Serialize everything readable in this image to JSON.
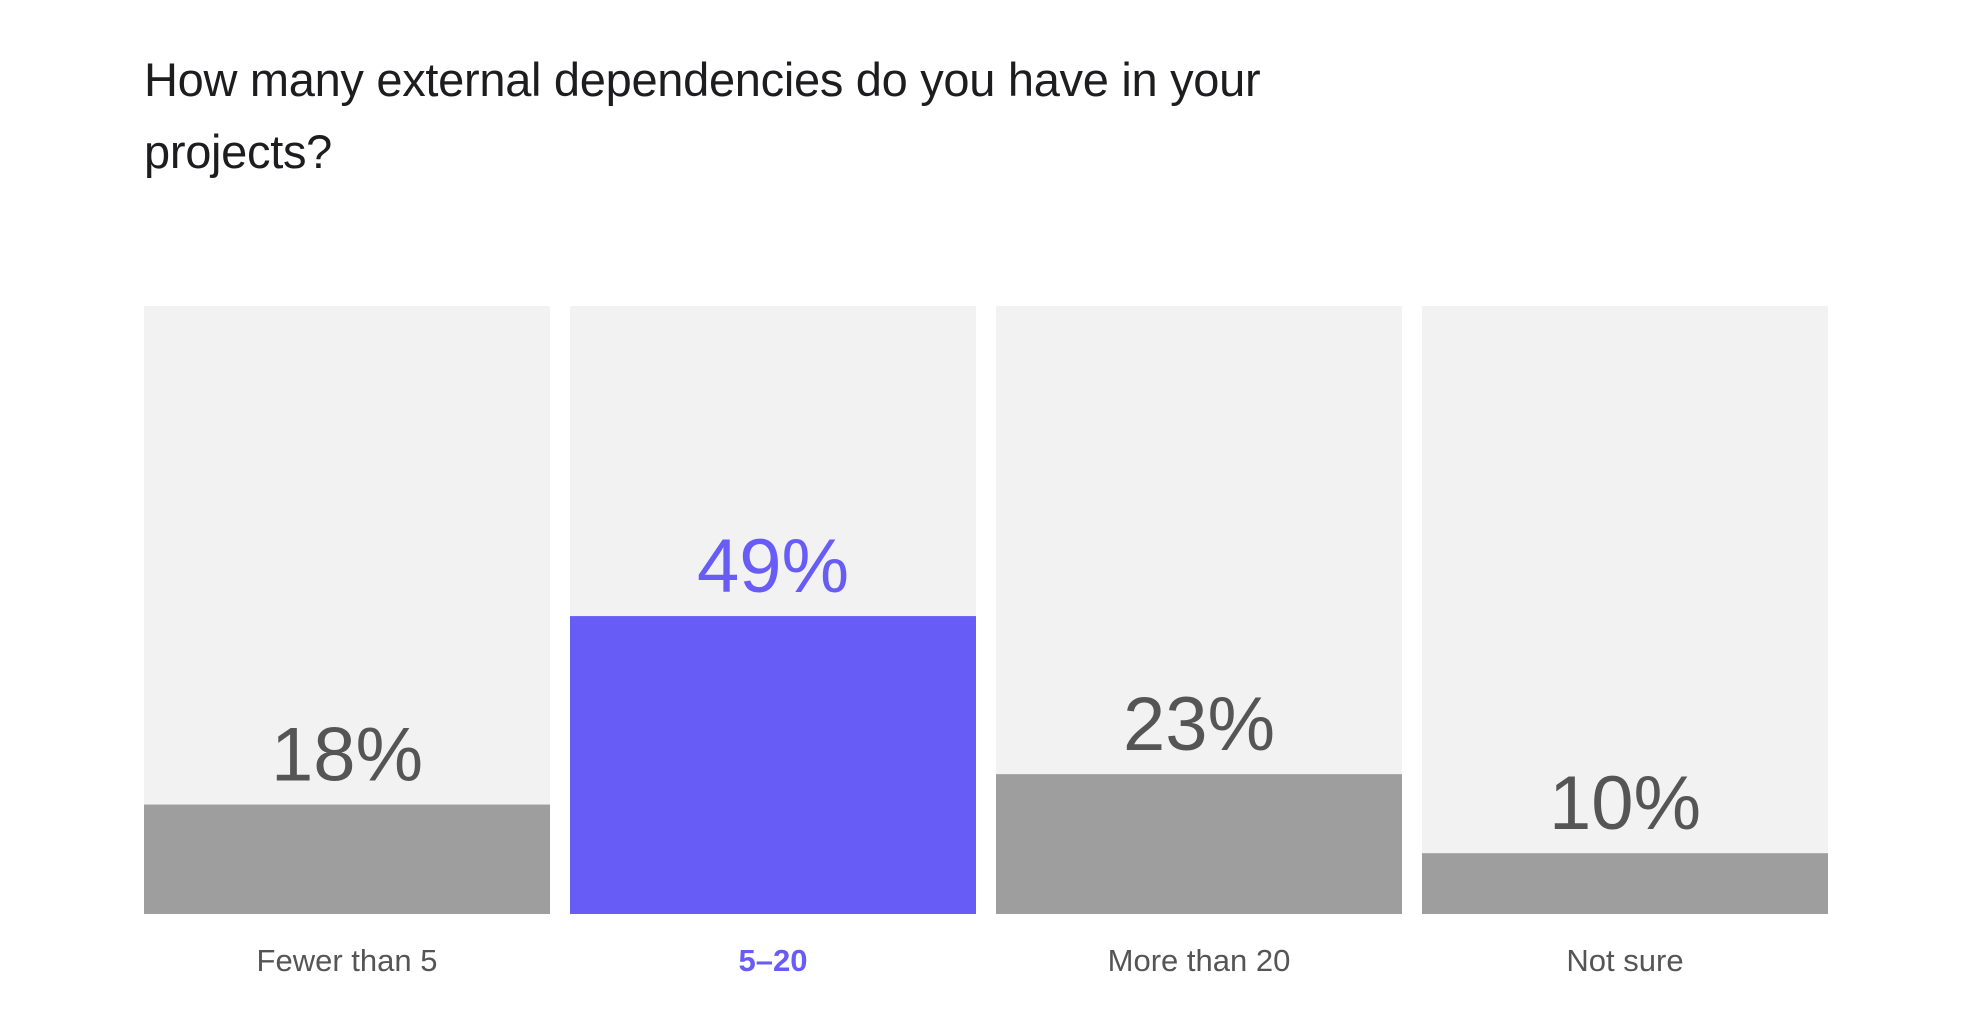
{
  "chart_data": {
    "type": "bar",
    "title": "How many external dependencies do you have in your projects?",
    "xlabel": "",
    "ylabel": "",
    "categories": [
      "Fewer than 5",
      "5–20",
      "More than 20",
      "Not sure"
    ],
    "values": [
      18,
      49,
      23,
      10
    ],
    "value_labels": [
      "18%",
      "49%",
      "23%",
      "10%"
    ],
    "unit": "%",
    "ylim": [
      0,
      100
    ],
    "highlight_index": 1,
    "grid": false,
    "legend": "none",
    "colors": {
      "track": "#f2f2f2",
      "bar": "#9e9e9e",
      "highlight": "#675df6",
      "value_text": "#555555",
      "category_text": "#555555"
    }
  }
}
